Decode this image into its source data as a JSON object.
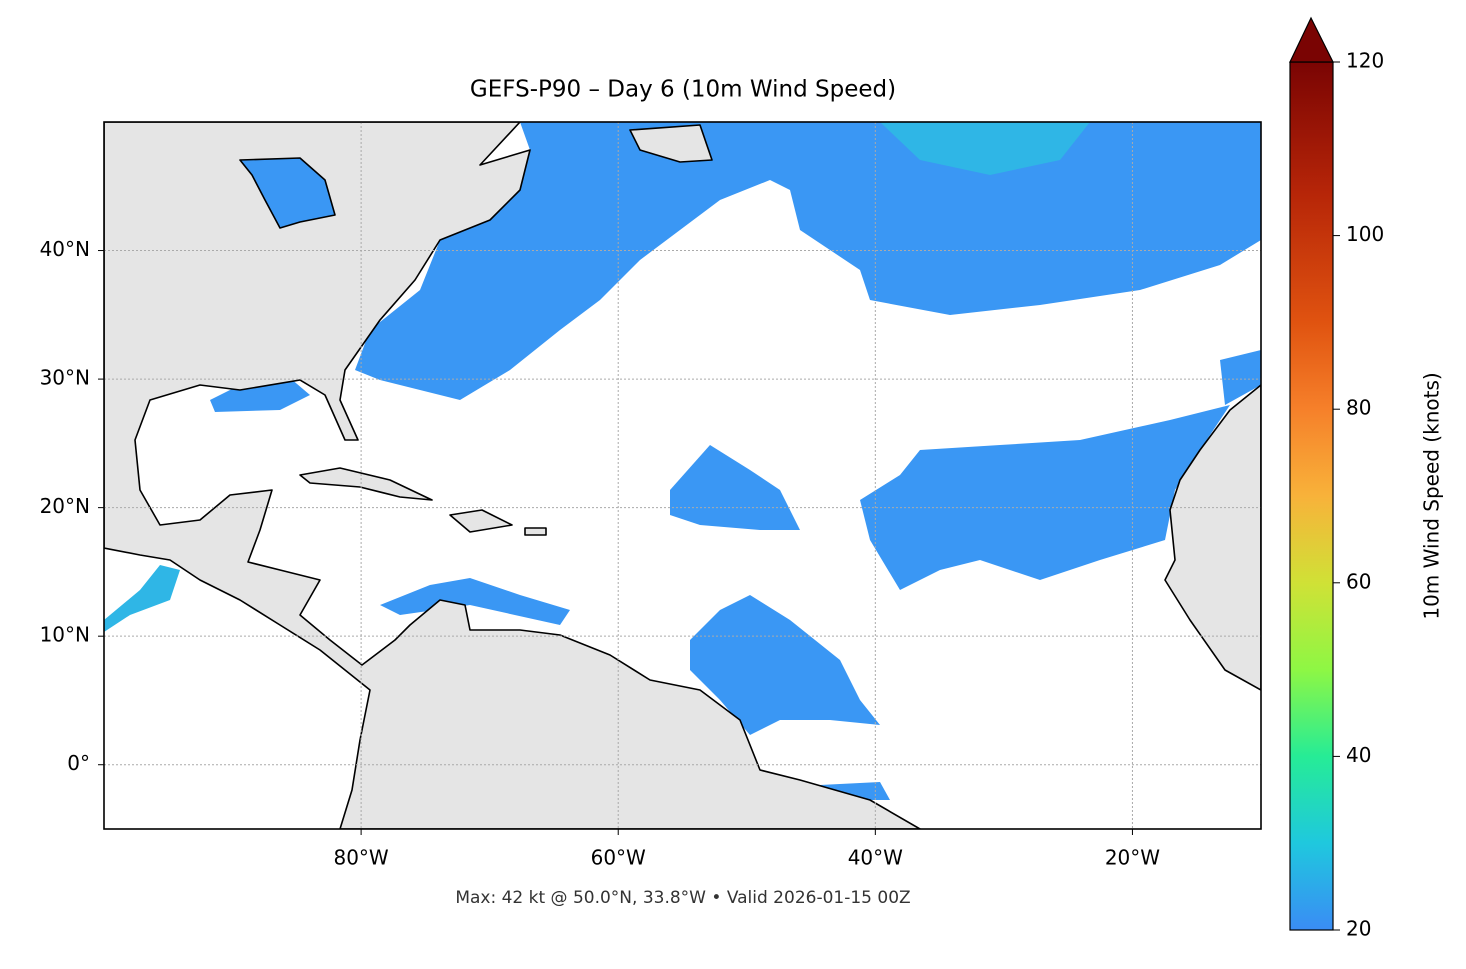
{
  "map": {
    "title": "GEFS-P90 – Day 6 (10m Wind Speed)",
    "footer": "Max: 42 kt @ 50.0°N, 33.8°W • Valid 2026-01-15 00Z",
    "xlim": [
      -100,
      -10
    ],
    "ylim": [
      -5,
      50
    ],
    "xticks": [
      {
        "value": -80,
        "label": "80°W"
      },
      {
        "value": -60,
        "label": "60°W"
      },
      {
        "value": -40,
        "label": "40°W"
      },
      {
        "value": -20,
        "label": "20°W"
      }
    ],
    "yticks": [
      {
        "value": 0,
        "label": "0°"
      },
      {
        "value": 10,
        "label": "10°N"
      },
      {
        "value": 20,
        "label": "20°N"
      },
      {
        "value": 30,
        "label": "30°N"
      },
      {
        "value": 40,
        "label": "40°N"
      }
    ],
    "grid": true,
    "colorbar": {
      "label": "10m Wind Speed (knots)",
      "lim": [
        20,
        120
      ],
      "ticks": [
        20,
        40,
        60,
        80,
        100,
        120
      ]
    }
  }
}
